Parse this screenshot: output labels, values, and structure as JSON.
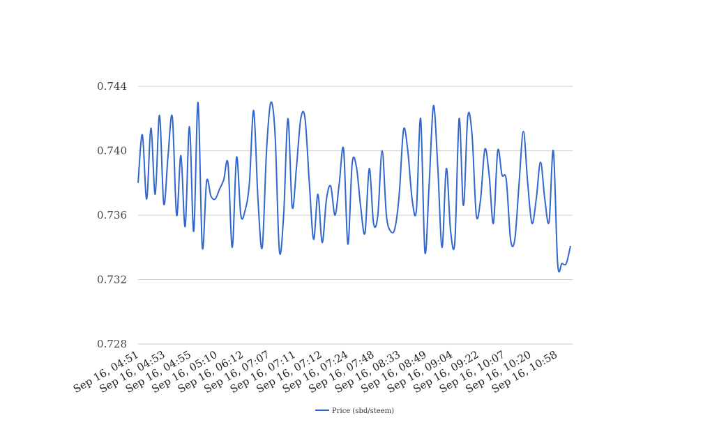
{
  "chart_data": {
    "type": "line",
    "title": "",
    "xlabel": "",
    "ylabel": "",
    "ylim": [
      0.728,
      0.744
    ],
    "yticks": [
      "0.728",
      "0.732",
      "0.736",
      "0.740",
      "0.744"
    ],
    "grid": true,
    "legend_position": "bottom",
    "x_tick_labels": [
      "Sep 16, 04:51",
      "Sep 16, 04:53",
      "Sep 16, 04:55",
      "Sep 16, 05:10",
      "Sep 16, 06:12",
      "Sep 16, 07:07",
      "Sep 16, 07:11",
      "Sep 16, 07:12",
      "Sep 16, 07:24",
      "Sep 16, 07:48",
      "Sep 16, 08:33",
      "Sep 16, 08:49",
      "Sep 16, 09:04",
      "Sep 16, 09:22",
      "Sep 16, 10:07",
      "Sep 16, 10:20",
      "Sep 16, 10:58"
    ],
    "series": [
      {
        "name": "Price (sbd/steem)",
        "color": "#3366cc",
        "values": [
          0.738,
          0.741,
          0.737,
          0.7414,
          0.7373,
          0.7422,
          0.7367,
          0.7397,
          0.7421,
          0.736,
          0.7397,
          0.7353,
          0.7415,
          0.735,
          0.743,
          0.734,
          0.7381,
          0.7372,
          0.737,
          0.7376,
          0.7382,
          0.7392,
          0.734,
          0.7396,
          0.736,
          0.7363,
          0.738,
          0.7425,
          0.737,
          0.734,
          0.74,
          0.743,
          0.741,
          0.7338,
          0.736,
          0.742,
          0.7365,
          0.739,
          0.742,
          0.742,
          0.738,
          0.7345,
          0.7373,
          0.7343,
          0.737,
          0.7378,
          0.736,
          0.738,
          0.7401,
          0.7342,
          0.7392,
          0.739,
          0.7365,
          0.7349,
          0.7389,
          0.7355,
          0.736,
          0.74,
          0.736,
          0.735,
          0.7352,
          0.7373,
          0.7413,
          0.74,
          0.737,
          0.7363,
          0.742,
          0.7337,
          0.738,
          0.7428,
          0.739,
          0.734,
          0.7389,
          0.735,
          0.7344,
          0.742,
          0.7366,
          0.7421,
          0.741,
          0.736,
          0.737,
          0.7401,
          0.7385,
          0.7355,
          0.74,
          0.7385,
          0.7382,
          0.7345,
          0.7345,
          0.738,
          0.7412,
          0.738,
          0.7355,
          0.737,
          0.7393,
          0.737,
          0.7356,
          0.74,
          0.733,
          0.733,
          0.733,
          0.7341
        ]
      }
    ]
  }
}
